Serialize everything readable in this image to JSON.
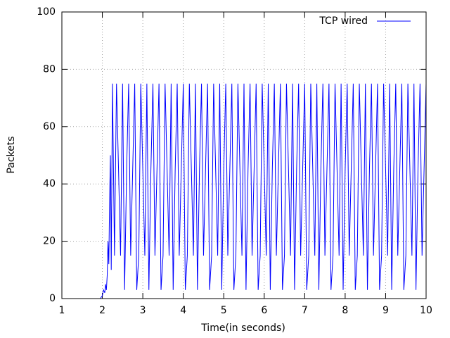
{
  "chart_data": {
    "type": "line",
    "xlabel": "Time(in seconds)",
    "ylabel": "Packets",
    "xlim": [
      1,
      10
    ],
    "ylim": [
      0,
      100
    ],
    "xticks": [
      1,
      2,
      3,
      4,
      5,
      6,
      7,
      8,
      9,
      10
    ],
    "yticks": [
      0,
      20,
      40,
      60,
      80,
      100
    ],
    "grid": true,
    "legend": "upper right",
    "x": [
      1.95,
      2,
      2.03,
      2.06,
      2.08,
      2.1,
      2.12,
      2.14,
      2.16,
      2.18,
      2.2,
      2.22,
      2.25,
      2.3,
      2.35,
      2.4,
      2.45,
      2.5,
      2.55,
      2.6,
      2.65,
      2.7,
      2.75,
      2.8,
      2.85,
      2.9,
      2.95,
      3,
      3.05,
      3.1,
      3.15,
      3.2,
      3.25,
      3.3,
      3.35,
      3.4,
      3.45,
      3.5,
      3.55,
      3.6,
      3.65,
      3.7,
      3.75,
      3.8,
      3.85,
      3.9,
      3.95,
      4,
      4.05,
      4.1,
      4.15,
      4.2,
      4.25,
      4.3,
      4.35,
      4.4,
      4.45,
      4.5,
      4.55,
      4.6,
      4.65,
      4.7,
      4.75,
      4.8,
      4.85,
      4.9,
      4.95,
      5,
      5.05,
      5.1,
      5.15,
      5.2,
      5.25,
      5.3,
      5.35,
      5.4,
      5.45,
      5.5,
      5.55,
      5.6,
      5.65,
      5.7,
      5.75,
      5.8,
      5.85,
      5.9,
      5.95,
      6,
      6.05,
      6.1,
      6.15,
      6.2,
      6.25,
      6.3,
      6.35,
      6.4,
      6.45,
      6.5,
      6.55,
      6.6,
      6.65,
      6.7,
      6.75,
      6.8,
      6.85,
      6.9,
      6.95,
      7,
      7.05,
      7.1,
      7.15,
      7.2,
      7.25,
      7.3,
      7.35,
      7.4,
      7.45,
      7.5,
      7.55,
      7.6,
      7.65,
      7.7,
      7.75,
      7.8,
      7.85,
      7.9,
      7.95,
      8,
      8.05,
      8.1,
      8.15,
      8.2,
      8.25,
      8.3,
      8.35,
      8.4,
      8.45,
      8.5,
      8.55,
      8.6,
      8.65,
      8.7,
      8.75,
      8.8,
      8.85,
      8.9,
      8.95,
      9,
      9.05,
      9.1,
      9.15,
      9.2,
      9.25,
      9.3,
      9.35,
      9.4,
      9.45,
      9.5,
      9.55,
      9.6,
      9.65,
      9.7,
      9.75,
      9.8,
      9.85,
      9.9,
      9.95,
      10
    ],
    "series": [
      {
        "name": "TCP wired",
        "color": "#0000ff",
        "values": [
          0,
          1,
          3,
          2,
          5,
          3,
          8,
          20,
          12,
          35,
          50,
          10,
          75,
          15,
          75,
          45,
          15,
          75,
          3,
          45,
          75,
          15,
          45,
          75,
          3,
          15,
          75,
          45,
          15,
          75,
          3,
          45,
          75,
          15,
          45,
          75,
          3,
          15,
          75,
          45,
          15,
          75,
          3,
          45,
          75,
          15,
          45,
          75,
          3,
          15,
          75,
          45,
          15,
          75,
          3,
          45,
          75,
          15,
          45,
          75,
          3,
          15,
          75,
          45,
          15,
          75,
          3,
          45,
          75,
          15,
          45,
          75,
          3,
          15,
          75,
          45,
          15,
          75,
          3,
          45,
          75,
          15,
          45,
          75,
          3,
          15,
          75,
          45,
          15,
          75,
          3,
          45,
          75,
          15,
          45,
          75,
          3,
          15,
          75,
          45,
          15,
          75,
          3,
          45,
          75,
          15,
          45,
          75,
          3,
          15,
          75,
          45,
          15,
          75,
          3,
          45,
          75,
          15,
          45,
          75,
          3,
          15,
          75,
          45,
          15,
          75,
          3,
          45,
          75,
          15,
          45,
          75,
          3,
          15,
          75,
          45,
          15,
          75,
          3,
          45,
          75,
          15,
          45,
          75,
          3,
          15,
          75,
          45,
          15,
          75,
          3,
          45,
          75,
          15,
          45,
          75,
          3,
          15,
          75,
          45,
          15,
          75,
          3,
          45,
          75,
          15,
          45,
          75
        ]
      }
    ]
  }
}
